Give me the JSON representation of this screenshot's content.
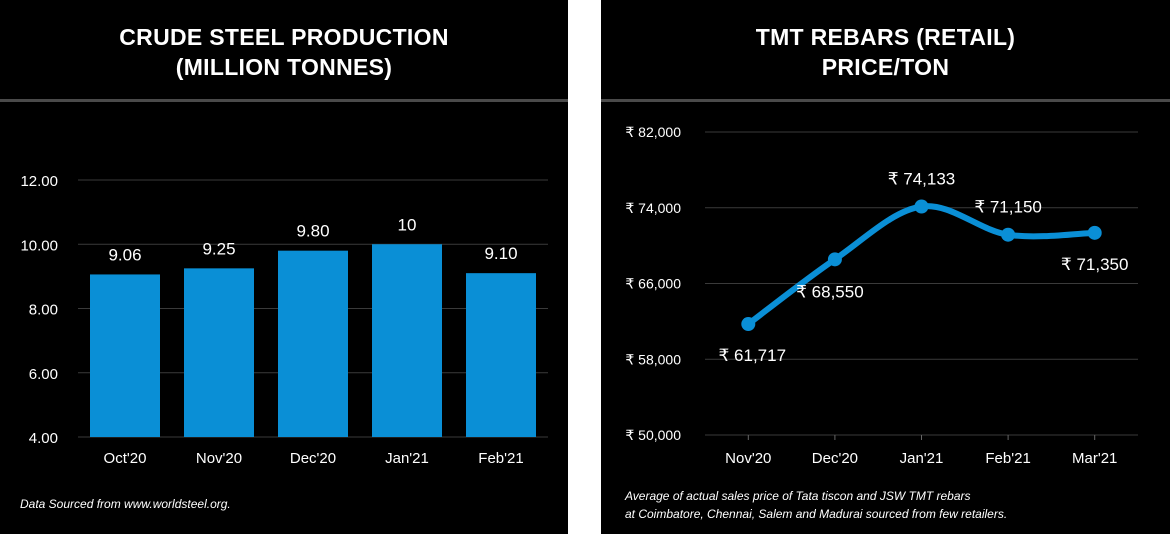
{
  "left_panel": {
    "title_line1": "CRUDE STEEL PRODUCTION",
    "title_line2": "(MILLION TONNES)",
    "footnote": "Data Sourced from www.worldsteel.org."
  },
  "right_panel": {
    "title_line1": "TMT REBARS (RETAIL)",
    "title_line2": "PRICE/TON",
    "footnote_line1": "Average of actual sales price of Tata tiscon and JSW TMT rebars",
    "footnote_line2": "at Coimbatore, Chennai, Salem and Madurai sourced from few retailers."
  },
  "colors": {
    "bar": "#0a8fd6",
    "line": "#0a8fd6",
    "grid": "#3a3a3a",
    "background": "#000000"
  },
  "chart_data": [
    {
      "type": "bar",
      "title": "CRUDE STEEL PRODUCTION (MILLION TONNES)",
      "categories": [
        "Oct'20",
        "Nov'20",
        "Dec'20",
        "Jan'21",
        "Feb'21"
      ],
      "values": [
        9.06,
        9.25,
        9.8,
        10,
        9.1
      ],
      "data_labels": [
        "9.06",
        "9.25",
        "9.80",
        "10",
        "9.10"
      ],
      "yticks": [
        "4.00",
        "6.00",
        "8.00",
        "10.00",
        "12.00"
      ],
      "ylim": [
        4,
        12
      ],
      "grid": true
    },
    {
      "type": "line",
      "title": "TMT REBARS (RETAIL) PRICE/TON",
      "categories": [
        "Nov'20",
        "Dec'20",
        "Jan'21",
        "Feb'21",
        "Mar'21"
      ],
      "values": [
        61717,
        68550,
        74133,
        71150,
        71350
      ],
      "data_labels": [
        "₹ 61,717",
        "₹ 68,550",
        "₹ 74,133",
        "₹ 71,150",
        "₹ 71,350"
      ],
      "yticks": [
        "₹ 50,000",
        "₹ 58,000",
        "₹ 66,000",
        "₹ 74,000",
        "₹ 82,000"
      ],
      "ylim": [
        50000,
        82000
      ],
      "grid": true,
      "smooth": true
    }
  ]
}
